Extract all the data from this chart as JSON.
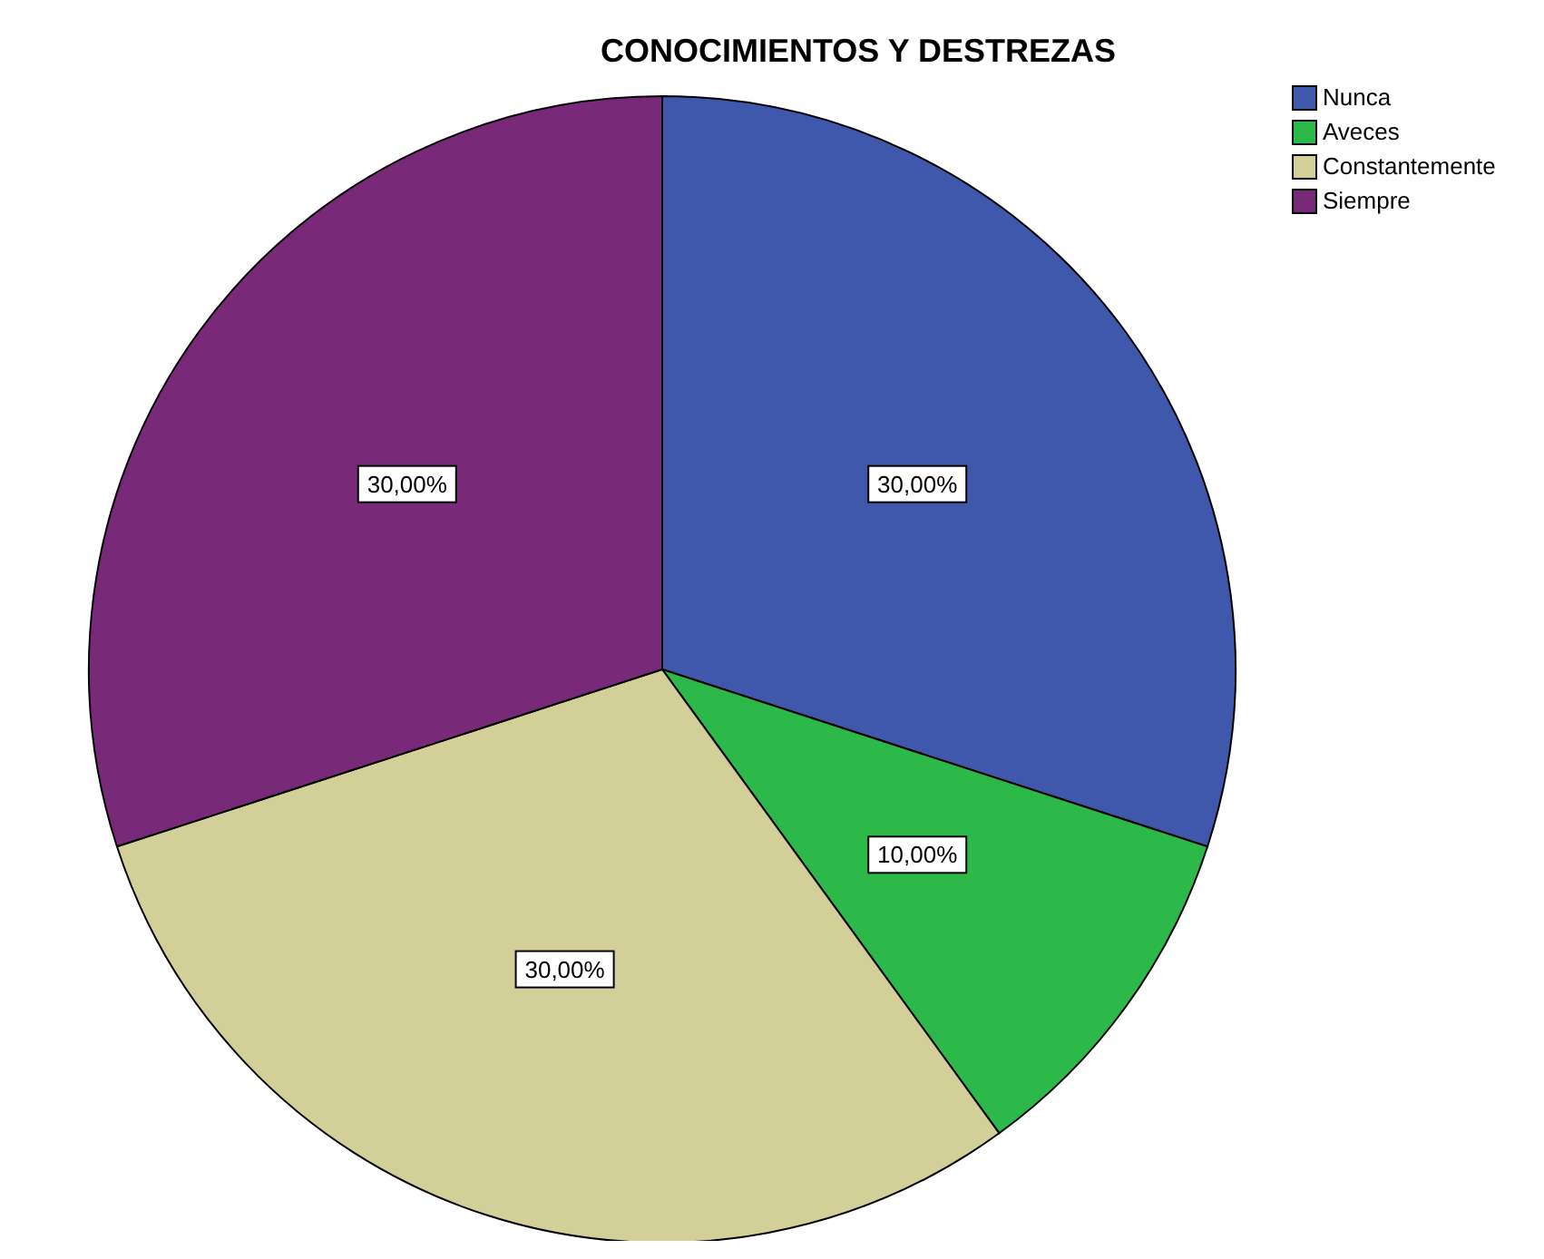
{
  "chart_data": {
    "type": "pie",
    "title": "CONOCIMIENTOS Y DESTREZAS",
    "categories": [
      "Nunca",
      "Aveces",
      "Constantemente",
      "Siempre"
    ],
    "values": [
      30,
      10,
      30,
      30
    ],
    "colors": [
      "#3f58ab",
      "#2db84a",
      "#d3cf98",
      "#782a78"
    ],
    "value_labels": [
      "30,00%",
      "10,00%",
      "30,00%",
      "30,00%"
    ],
    "legend": "top right"
  }
}
